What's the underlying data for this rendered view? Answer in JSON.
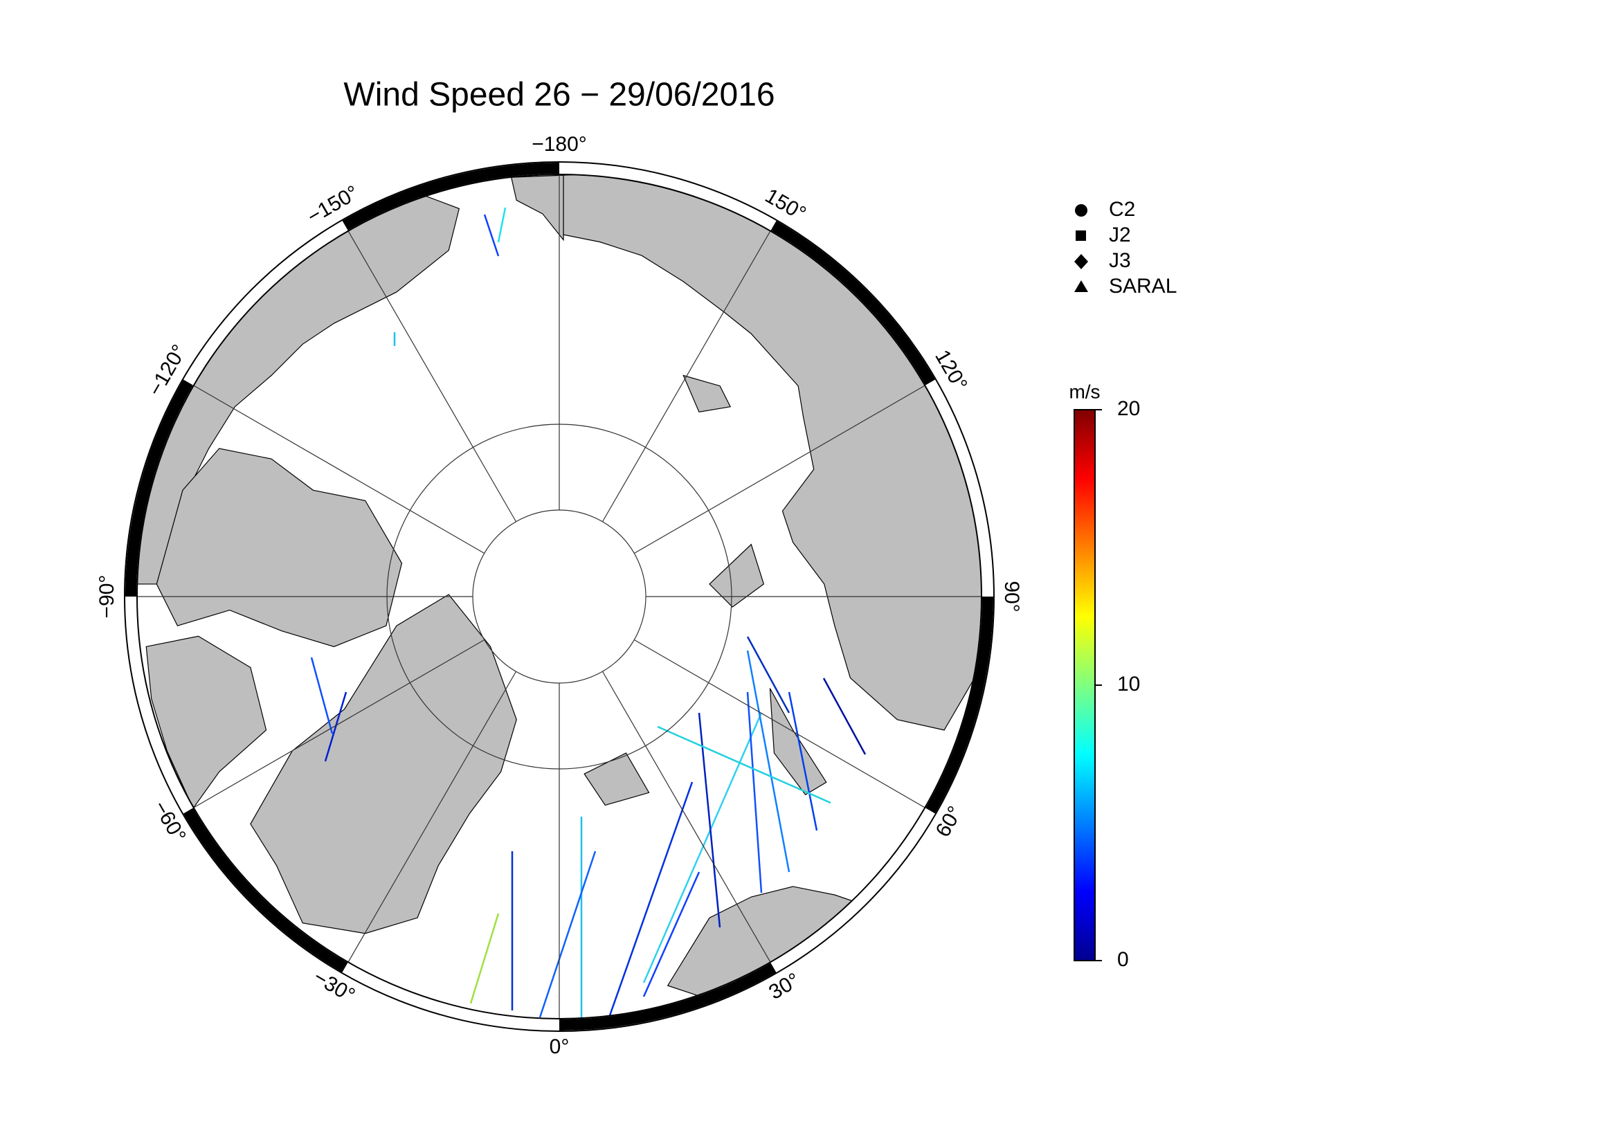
{
  "chart_data": {
    "type": "polar-map",
    "title": "Wind Speed 26 − 29/06/2016",
    "lonticks": [
      {
        "value": -180,
        "label": "−180°"
      },
      {
        "value": -150,
        "label": "−150°"
      },
      {
        "value": -120,
        "label": "−120°"
      },
      {
        "value": -90,
        "label": "−90°"
      },
      {
        "value": -60,
        "label": "−60°"
      },
      {
        "value": -30,
        "label": "−30°"
      },
      {
        "value": 0,
        "label": "0°"
      },
      {
        "value": 30,
        "label": "30°"
      },
      {
        "value": 60,
        "label": "60°"
      },
      {
        "value": 90,
        "label": "90°"
      },
      {
        "value": 120,
        "label": "120°"
      },
      {
        "value": 150,
        "label": "150°"
      }
    ],
    "legend": [
      {
        "name": "C2",
        "marker": "circle"
      },
      {
        "name": "J2",
        "marker": "square"
      },
      {
        "name": "J3",
        "marker": "diamond"
      },
      {
        "name": "SARAL",
        "marker": "triangle"
      }
    ],
    "colorbar": {
      "label": "m/s",
      "lim": [
        0,
        20
      ],
      "ticks": [
        0,
        10,
        20
      ],
      "colormap": "jet"
    }
  }
}
